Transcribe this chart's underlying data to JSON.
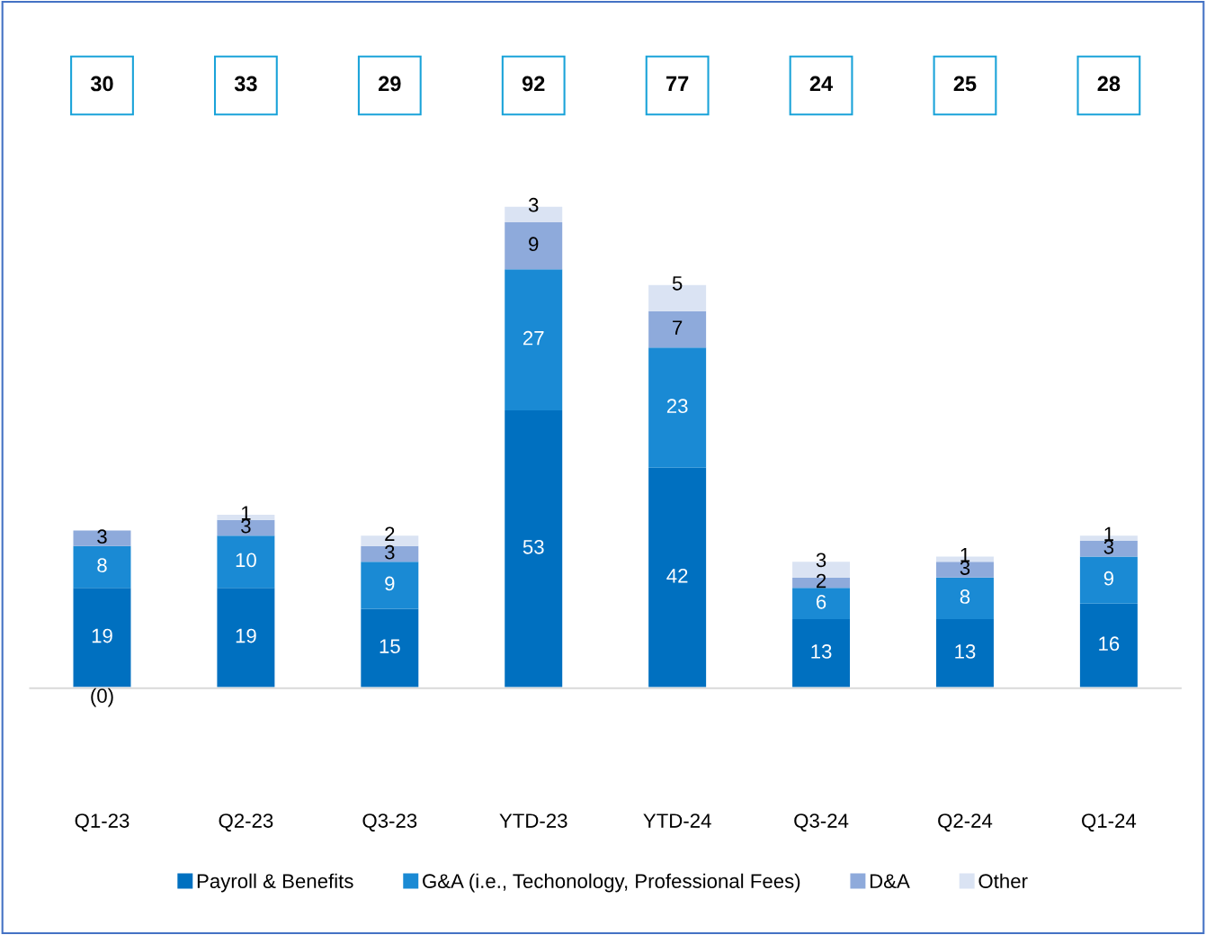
{
  "chart_data": {
    "type": "bar",
    "stacked": true,
    "categories": [
      "Q1-23",
      "Q2-23",
      "Q3-23",
      "YTD-23",
      "YTD-24",
      "Q3-24",
      "Q2-24",
      "Q1-24"
    ],
    "series": [
      {
        "name": "Payroll & Benefits",
        "color": "#0070c0",
        "values": [
          19,
          19,
          15,
          53,
          42,
          13,
          13,
          16
        ],
        "value_labels": [
          "19",
          "19",
          "15",
          "53",
          "42",
          "13",
          "13",
          "16"
        ]
      },
      {
        "name": "G&A (i.e., Techonology, Professional Fees)",
        "color": "#1a8ad4",
        "values": [
          8,
          10,
          9,
          27,
          23,
          6,
          8,
          9
        ],
        "value_labels": [
          "8",
          "10",
          "9",
          "27",
          "23",
          "6",
          "8",
          "9"
        ]
      },
      {
        "name": "D&A",
        "color": "#8eaadb",
        "values": [
          3,
          3,
          3,
          9,
          7,
          2,
          3,
          3
        ],
        "value_labels": [
          "3",
          "3",
          "3",
          "9",
          "7",
          "2",
          "3",
          "3"
        ]
      },
      {
        "name": "Other",
        "color": "#dae3f3",
        "values": [
          -0.2,
          1,
          2,
          3,
          5,
          3,
          1,
          1
        ],
        "value_labels": [
          "(0)",
          "1",
          "2",
          "3",
          "5",
          "3",
          "1",
          "1"
        ]
      }
    ],
    "annotations": [
      "30",
      "33",
      "29",
      "92",
      "77",
      "24",
      "25",
      "28"
    ],
    "legend": "bottom",
    "grid": false
  }
}
